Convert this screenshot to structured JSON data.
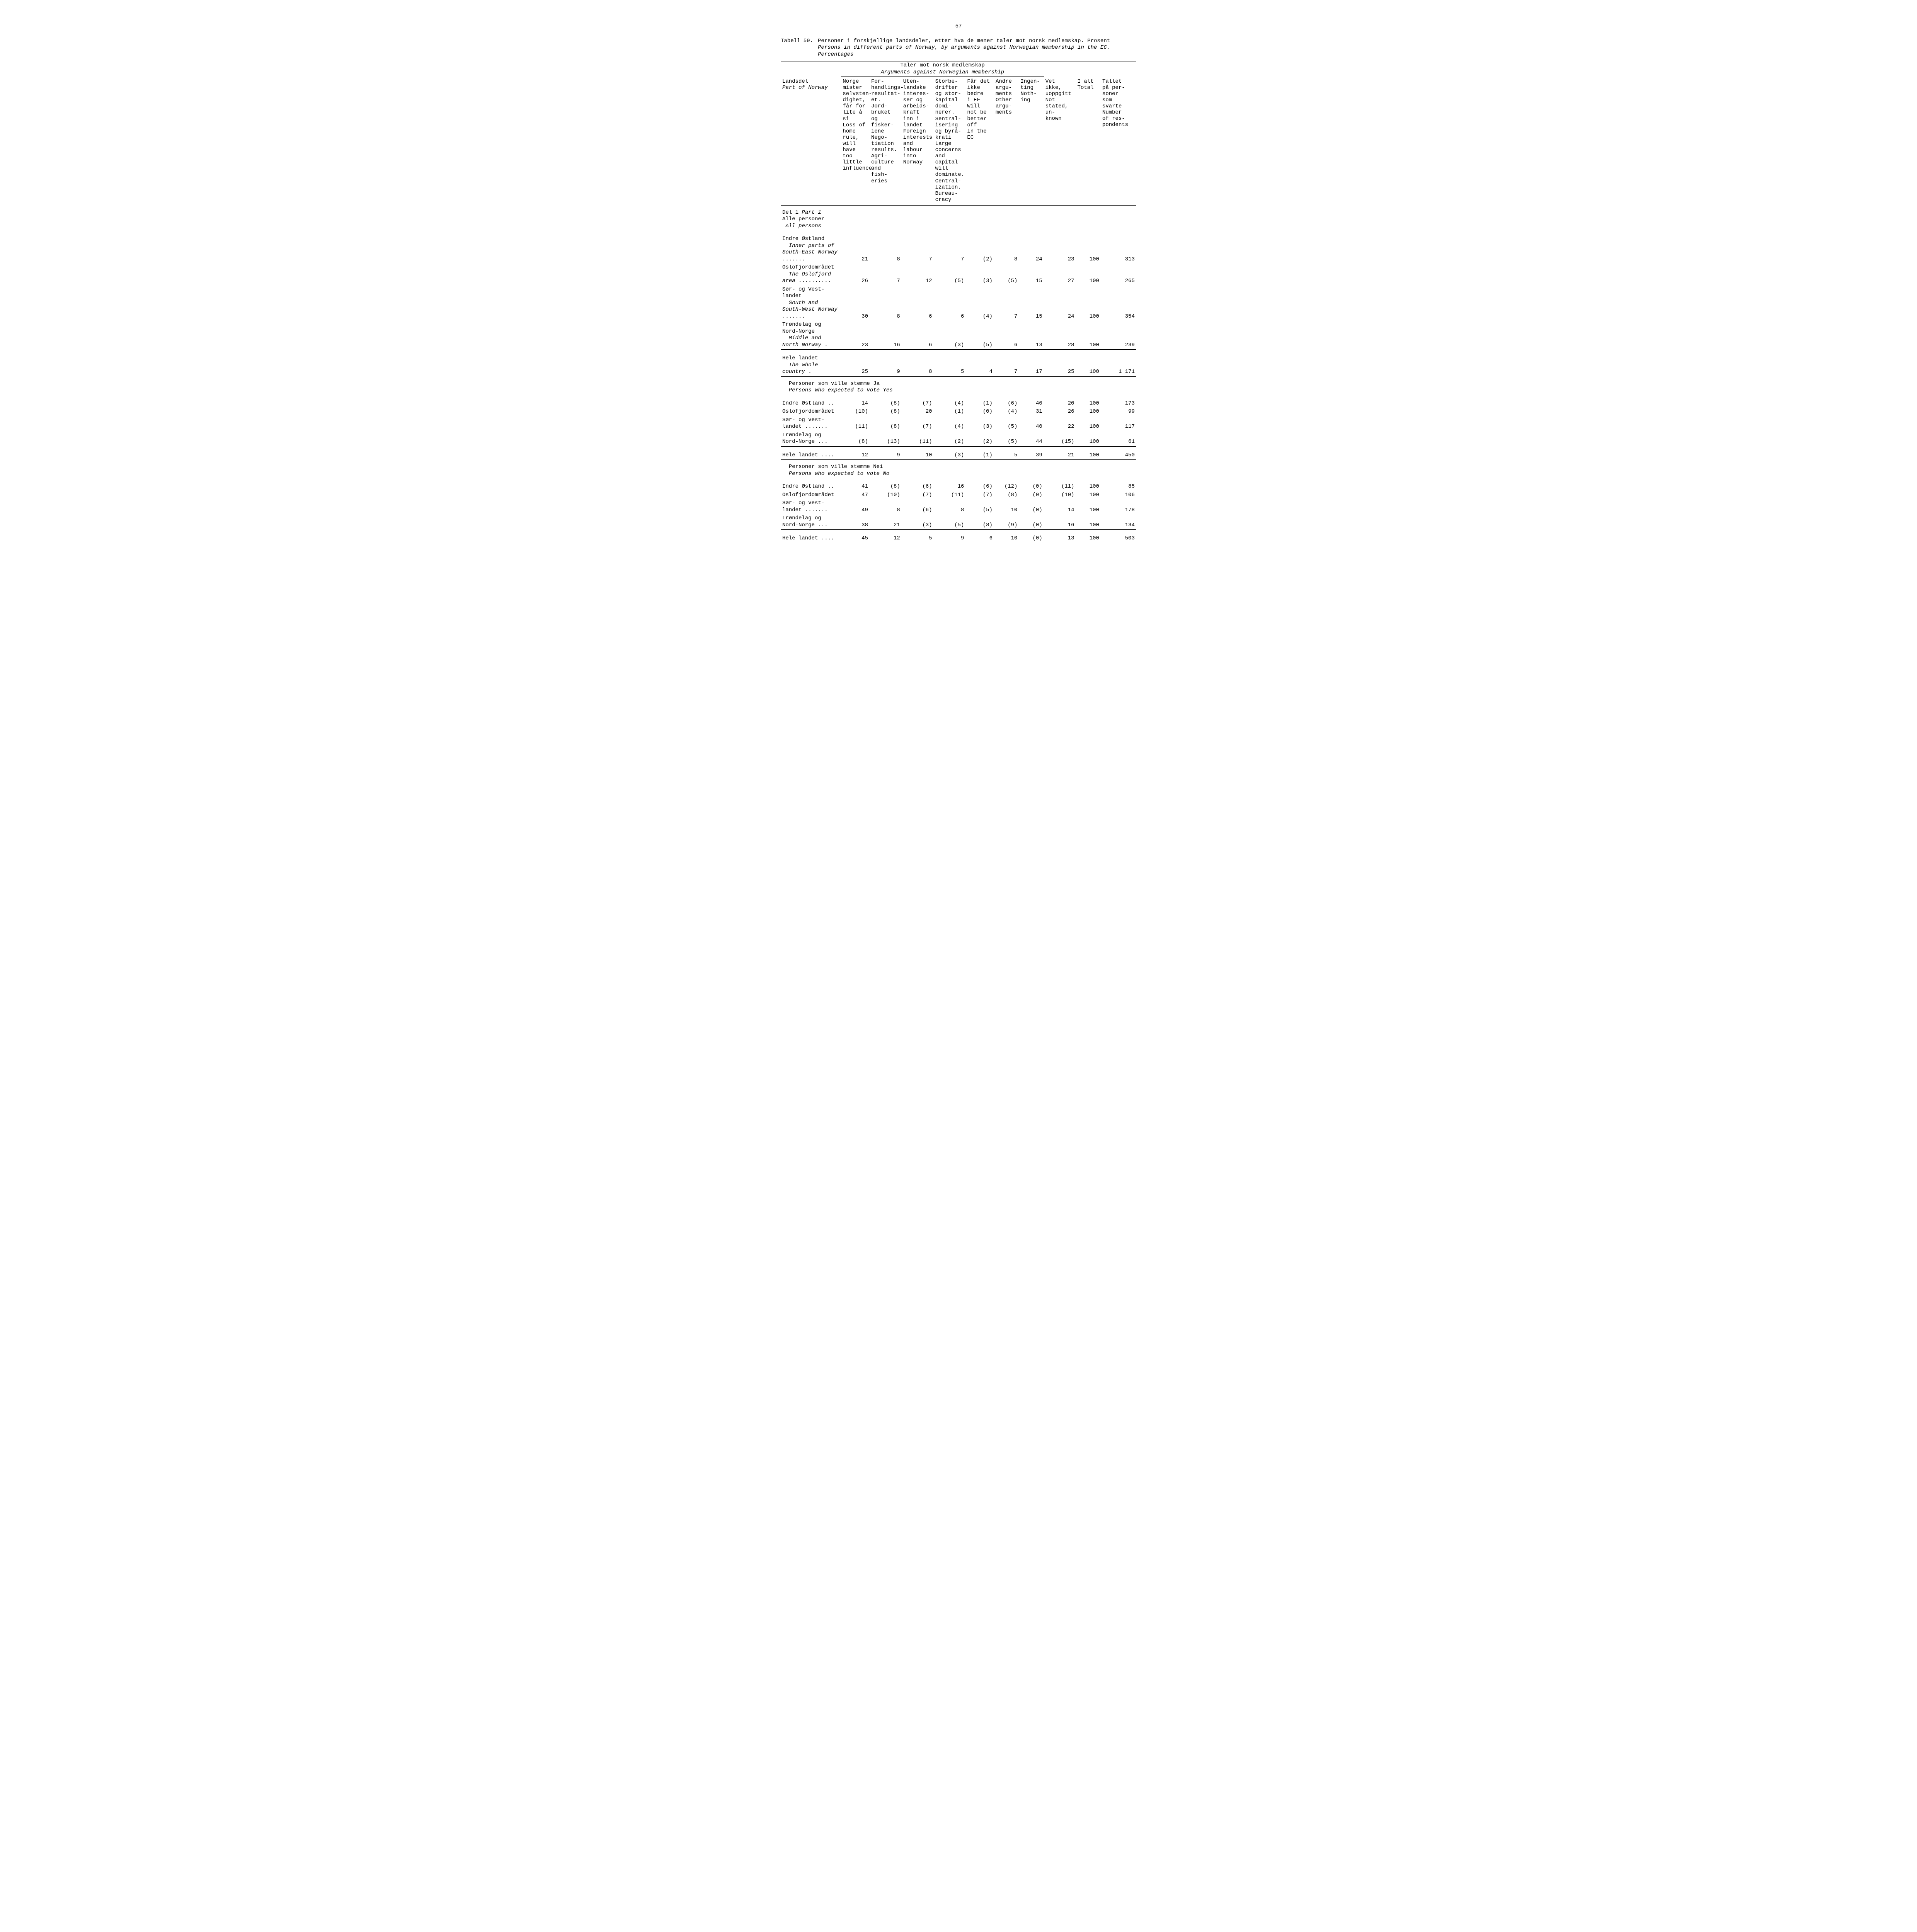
{
  "page_number": "57",
  "table_label": "Tabell 59.",
  "title_no": "Personer i forskjellige landsdeler, etter hva de mener taler mot norsk medlemskap. Prosent",
  "title_en": "Persons in different parts of Norway, by arguments against Norwegian membership in the EC. Percentages",
  "spanner_no": "Taler mot norsk medlemskap",
  "spanner_en": "Arguments against Norwegian membership",
  "columns": {
    "stub_no": "Landsdel",
    "stub_en": "Part of Norway",
    "c1": "Norge\nmister\nselvsten-\ndighet,\nfår for\nlite å si\nLoss of\nhome rule,\nwill have\ntoo\nlittle\ninfluence",
    "c2": "For-\nhandlings-\nresultat-\net. Jord-\nbruket\nog\nfisker-\niene\nNego-\ntiation\nresults.\nAgri-\nculture\nand\nfish-\neries",
    "c3": "Uten-\nlandske\ninteres-\nser og\narbeids-\nkraft\ninn i\nlandet\nForeign\ninterests\nand\nlabour\ninto\nNorway",
    "c4": "Storbe-\ndrifter\nog stor-\nkapital\ndomi-\nnerer.\nSentral-\nisering\nog byrå-\nkrati\nLarge\nconcerns\nand\ncapital\nwill\ndominate.\nCentral-\nization.\nBureau-\ncracy",
    "c5": "Får det\nikke\nbedre\ni EF\nWill\nnot be\nbetter\noff\nin the\nEC",
    "c6": "Andre\nargu-\nments\nOther\nargu-\nments",
    "c7": "Ingen-\nting\nNoth-\ning",
    "c8": "Vet ikke,\nuoppgitt\nNot\nstated,\nun-\nknown",
    "c9": "I alt\nTotal",
    "c10": "Tallet\npå per-\nsoner\nsom\nsvarte\nNumber\nof res-\npondents"
  },
  "sections": [
    {
      "header_no": "Del 1",
      "header_en": "Part 1",
      "sub_no": "Alle personer",
      "sub_en": "All persons",
      "rows": [
        {
          "label": "Indre Østland",
          "label_en": "Inner parts of South-East Norway",
          "dots": ".......",
          "v": [
            "21",
            "8",
            "7",
            "7",
            "(2)",
            "8",
            "24",
            "23",
            "100",
            "313"
          ],
          "rule": false
        },
        {
          "label": "Oslofjordområdet",
          "label_en": "The Oslofjord area",
          "dots": "..........",
          "v": [
            "26",
            "7",
            "12",
            "(5)",
            "(3)",
            "(5)",
            "15",
            "27",
            "100",
            "265"
          ],
          "rule": false
        },
        {
          "label": "Sør- og Vest-landet",
          "label_en": "South and South-West Norway",
          "dots": ".......",
          "v": [
            "30",
            "8",
            "6",
            "6",
            "(4)",
            "7",
            "15",
            "24",
            "100",
            "354"
          ],
          "rule": false
        },
        {
          "label": "Trøndelag og Nord-Norge",
          "label_en": "Middle and North Norway",
          "dots": ".",
          "v": [
            "23",
            "16",
            "6",
            "(3)",
            "(5)",
            "6",
            "13",
            "28",
            "100",
            "239"
          ],
          "rule": true
        }
      ],
      "total": {
        "label": "Hele landet",
        "label_en": "The whole country",
        "dots": ".",
        "v": [
          "25",
          "9",
          "8",
          "5",
          "4",
          "7",
          "17",
          "25",
          "100",
          "1 171"
        ],
        "rule": true
      }
    },
    {
      "header_no": "Personer som ville stemme Ja",
      "header_en": "Persons who expected to vote Yes",
      "rows": [
        {
          "label": "Indre Østland ..",
          "v": [
            "14",
            "(8)",
            "(7)",
            "(4)",
            "(1)",
            "(6)",
            "40",
            "20",
            "100",
            "173"
          ],
          "rule": false
        },
        {
          "label": "Oslofjordområdet",
          "v": [
            "(10)",
            "(8)",
            "20",
            "(1)",
            "(0)",
            "(4)",
            "31",
            "26",
            "100",
            "99"
          ],
          "rule": false
        },
        {
          "label": "Sør- og Vest-landet .......",
          "v": [
            "(11)",
            "(8)",
            "(7)",
            "(4)",
            "(3)",
            "(5)",
            "40",
            "22",
            "100",
            "117"
          ],
          "rule": false
        },
        {
          "label": "Trøndelag og Nord-Norge ...",
          "v": [
            "(8)",
            "(13)",
            "(11)",
            "(2)",
            "(2)",
            "(5)",
            "44",
            "(15)",
            "100",
            "61"
          ],
          "rule": true
        }
      ],
      "total": {
        "label": "Hele landet ....",
        "v": [
          "12",
          "9",
          "10",
          "(3)",
          "(1)",
          "5",
          "39",
          "21",
          "100",
          "450"
        ],
        "rule": true
      }
    },
    {
      "header_no": "Personer som ville stemme Nei",
      "header_en": "Persons who expected to vote No",
      "rows": [
        {
          "label": "Indre Østland ..",
          "v": [
            "41",
            "(8)",
            "(6)",
            "16",
            "(6)",
            "(12)",
            "(0)",
            "(11)",
            "100",
            "85"
          ],
          "rule": false
        },
        {
          "label": "Oslofjordområdet",
          "v": [
            "47",
            "(10)",
            "(7)",
            "(11)",
            "(7)",
            "(8)",
            "(0)",
            "(10)",
            "100",
            "106"
          ],
          "rule": false
        },
        {
          "label": "Sør- og Vest-landet .......",
          "v": [
            "49",
            "8",
            "(6)",
            "8",
            "(5)",
            "10",
            "(0)",
            "14",
            "100",
            "178"
          ],
          "rule": false
        },
        {
          "label": "Trøndelag og Nord-Norge ...",
          "v": [
            "38",
            "21",
            "(3)",
            "(5)",
            "(8)",
            "(9)",
            "(0)",
            "16",
            "100",
            "134"
          ],
          "rule": true
        }
      ],
      "total": {
        "label": "Hele landet ....",
        "v": [
          "45",
          "12",
          "5",
          "9",
          "6",
          "10",
          "(0)",
          "13",
          "100",
          "503"
        ],
        "rule": true
      }
    }
  ]
}
